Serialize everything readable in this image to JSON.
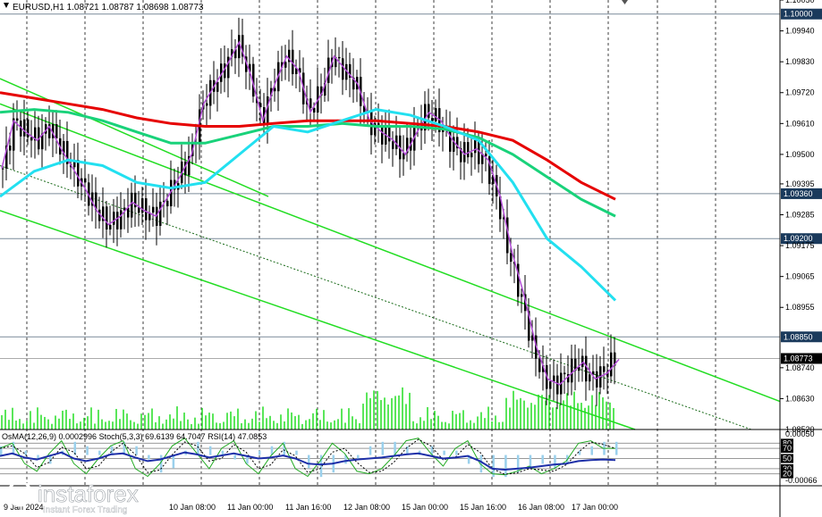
{
  "header": {
    "symbol_line": "EURUSD,H1  1.08721 1.08787 1.08698 1.08773"
  },
  "indicator_header": "OsMA(12,26,9) 0.0002996  Stoch(5,3,3) 69.6139 64.7047  RSI(14) 47.0853",
  "logo": {
    "brand": "instaforex",
    "tagline": "Instant Forex Trading"
  },
  "colors": {
    "ema200": "#e60000",
    "ema144": "#19d27a",
    "ema50": "#22e0f0",
    "sma_fast": "#b24dd6",
    "channel": "#22dd22",
    "candles": "#000000",
    "volume": "#22dd22",
    "current_tag_bg": "#000000",
    "level_tag_bg": "#1a3a5c"
  },
  "chart_data": {
    "type": "candlestick",
    "symbol": "EURUSD",
    "timeframe": "H1",
    "ohlc_current": {
      "open": 1.08721,
      "high": 1.08787,
      "low": 1.08698,
      "close": 1.08773
    },
    "ylim": [
      1.0852,
      1.1005
    ],
    "y_ticks": [
      "1.10050",
      "1.09940",
      "1.09830",
      "1.09720",
      "1.09610",
      "1.09500",
      "1.09395",
      "1.09285",
      "1.09175",
      "1.09065",
      "1.08955",
      "1.08740",
      "1.08630",
      "1.08520"
    ],
    "levels": [
      {
        "value": 1.1,
        "label": "1.10000"
      },
      {
        "value": 1.0936,
        "label": "1.09360"
      },
      {
        "value": 1.092,
        "label": "1.09200"
      },
      {
        "value": 1.0885,
        "label": "1.08850"
      }
    ],
    "current_price_label": "1.08773",
    "x_labels": [
      "9 Jan 2024",
      "10 Jan 08:00",
      "11 Jan 00:00",
      "11 Jan 16:00",
      "12 Jan 08:00",
      "15 Jan 00:00",
      "15 Jan 16:00",
      "16 Jan 08:00",
      "17 Jan 00:00"
    ],
    "price_path": [
      1.0945,
      1.0962,
      1.0958,
      1.0955,
      1.096,
      1.0952,
      1.0945,
      1.0938,
      1.093,
      1.0925,
      1.0928,
      1.0933,
      1.093,
      1.0928,
      1.0935,
      1.0942,
      1.095,
      1.0968,
      1.0975,
      1.0982,
      1.099,
      1.0978,
      1.0962,
      1.0975,
      1.0985,
      1.098,
      1.0965,
      1.0972,
      1.0985,
      1.098,
      1.0975,
      1.0962,
      1.0958,
      1.0955,
      1.095,
      1.0958,
      1.0965,
      1.0962,
      1.0955,
      1.095,
      1.0952,
      1.0948,
      1.0935,
      1.0915,
      1.09,
      1.0882,
      1.087,
      1.0868,
      1.0872,
      1.0876,
      1.087,
      1.0872,
      1.0877
    ],
    "ma_series": [
      {
        "key": "ema200",
        "values": [
          1.0972,
          1.097,
          1.0968,
          1.0966,
          1.0963,
          1.0961,
          1.096,
          1.096,
          1.0961,
          1.0962,
          1.0962,
          1.0962,
          1.0961,
          1.096,
          1.0958,
          1.0955,
          1.0948,
          1.094,
          1.0934
        ]
      },
      {
        "key": "ema144",
        "values": [
          1.0965,
          1.0966,
          1.0965,
          1.0962,
          1.0958,
          1.0954,
          1.0954,
          1.0957,
          1.096,
          1.096,
          1.0961,
          1.096,
          1.096,
          1.0959,
          1.0956,
          1.095,
          1.0942,
          1.0934,
          1.0928
        ]
      },
      {
        "key": "ema50",
        "values": [
          1.0935,
          1.0944,
          1.0948,
          1.0946,
          1.094,
          1.0938,
          1.094,
          1.095,
          1.096,
          1.0958,
          1.0962,
          1.0966,
          1.0964,
          1.096,
          1.0955,
          1.094,
          1.092,
          1.091,
          1.0898
        ]
      }
    ],
    "osma_range": [
      -0.00066,
      0.0005
    ],
    "osma_ticks": [
      "0.00050",
      "-0.00066"
    ],
    "stoch_levels": [
      "80",
      "70",
      "50",
      "30",
      "20"
    ],
    "osma_values": [
      0.0002,
      0.0003,
      0.0001,
      -0.0001,
      -0.0002,
      0.0001,
      0.0003,
      0.0002,
      0.0001,
      0.0002,
      0.0003,
      0.0002,
      -0.0001,
      -0.0004,
      -0.0003,
      0.0001,
      0.0003,
      0.0002,
      0.0001,
      -0.0001,
      -0.0002,
      0.0001,
      0.0002,
      0.0003,
      0.0001,
      -0.0003,
      -0.0005,
      -0.0004,
      -0.0002,
      -0.0001,
      0.0002,
      0.0003,
      0.0003,
      0.0002,
      0.0001,
      0.0002,
      0.0001,
      0.0001,
      -0.0002,
      -0.0004,
      -0.0005,
      -0.0005,
      -0.0004,
      -0.0003,
      -0.0002,
      -0.0003,
      -0.0002,
      0.0001,
      0.0002,
      0.0003,
      0.0003
    ],
    "stoch_k": [
      70,
      80,
      40,
      25,
      60,
      85,
      40,
      20,
      50,
      75,
      85,
      30,
      15,
      40,
      75,
      90,
      60,
      30,
      70,
      85,
      40,
      20,
      55,
      80,
      30,
      15,
      45,
      80,
      60,
      25,
      20,
      30,
      55,
      85,
      90,
      60,
      35,
      70,
      85,
      40,
      20,
      18,
      25,
      35,
      20,
      30,
      45,
      80,
      85,
      70,
      70
    ],
    "rsi": [
      55,
      60,
      52,
      48,
      55,
      62,
      50,
      45,
      50,
      58,
      60,
      52,
      45,
      48,
      55,
      62,
      58,
      52,
      56,
      60,
      55,
      50,
      52,
      56,
      50,
      40,
      38,
      40,
      45,
      48,
      50,
      52,
      55,
      58,
      60,
      55,
      50,
      52,
      55,
      45,
      30,
      28,
      30,
      32,
      35,
      38,
      40,
      45,
      47,
      48,
      47
    ]
  }
}
